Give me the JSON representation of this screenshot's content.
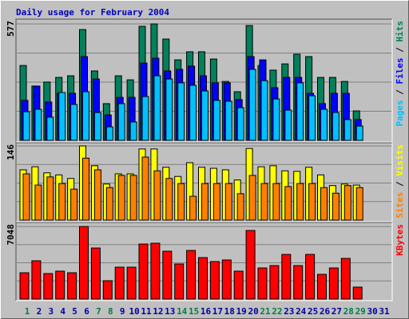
{
  "title": "Daily usage for February 2004",
  "legend_separator": " / ",
  "categories": [
    "1",
    "2",
    "3",
    "4",
    "5",
    "6",
    "7",
    "8",
    "9",
    "10",
    "11",
    "12",
    "13",
    "14",
    "15",
    "16",
    "17",
    "18",
    "19",
    "20",
    "21",
    "22",
    "23",
    "24",
    "25",
    "26",
    "27",
    "28",
    "29",
    "30",
    "31"
  ],
  "label_colors": [
    "#008040",
    "#0000a0",
    "#0000a0",
    "#0000a0",
    "#0000a0",
    "#0000a0",
    "#008040",
    "#008040",
    "#0000a0",
    "#0000a0",
    "#0000a0",
    "#0000a0",
    "#0000a0",
    "#008040",
    "#008040",
    "#0000a0",
    "#0000a0",
    "#0000a0",
    "#0000a0",
    "#0000a0",
    "#008040",
    "#008040",
    "#0000a0",
    "#0000a0",
    "#0000a0",
    "#0000a0",
    "#0000a0",
    "#008040",
    "#008040",
    "#0000a0",
    "#0000a0"
  ],
  "chart_data": [
    {
      "type": "bar",
      "ylim": [
        0,
        577
      ],
      "yticks": [
        577
      ],
      "grid": true,
      "series": [
        {
          "name": "Hits",
          "color": "#00805c",
          "values": [
            371,
            269,
            289,
            312,
            320,
            549,
            344,
            182,
            320,
            300,
            565,
            577,
            502,
            399,
            439,
            439,
            403,
            292,
            241,
            569,
            371,
            348,
            379,
            427,
            415,
            312,
            312,
            292,
            146,
            null,
            null
          ]
        },
        {
          "name": "Files",
          "color": "#0000ff",
          "values": [
            198,
            269,
            190,
            233,
            233,
            415,
            304,
            126,
            213,
            213,
            383,
            407,
            344,
            352,
            368,
            320,
            285,
            285,
            202,
            415,
            399,
            261,
            312,
            312,
            233,
            182,
            233,
            233,
            103,
            null,
            null
          ]
        },
        {
          "name": "Pages",
          "color": "#00c0ff",
          "values": [
            142,
            154,
            115,
            237,
            178,
            241,
            138,
            67,
            182,
            91,
            217,
            320,
            304,
            285,
            273,
            245,
            198,
            194,
            162,
            352,
            296,
            205,
            150,
            285,
            221,
            154,
            138,
            103,
            71,
            null,
            null
          ]
        }
      ]
    },
    {
      "type": "bar",
      "ylim": [
        0,
        146
      ],
      "yticks": [
        146
      ],
      "grid": true,
      "series": [
        {
          "name": "Visits",
          "color": "#ffff00",
          "values": [
            99,
            105,
            93,
            89,
            82,
            146,
            107,
            71,
            91,
            91,
            140,
            140,
            104,
            86,
            113,
            104,
            102,
            99,
            79,
            141,
            105,
            107,
            97,
            96,
            104,
            89,
            68,
            71,
            69,
            null,
            null
          ]
        },
        {
          "name": "Sites",
          "color": "#ff8000",
          "values": [
            91,
            69,
            85,
            72,
            61,
            122,
            99,
            64,
            88,
            88,
            124,
            97,
            82,
            72,
            47,
            72,
            72,
            72,
            52,
            88,
            72,
            72,
            66,
            72,
            72,
            64,
            53,
            68,
            64,
            null,
            null
          ]
        }
      ]
    },
    {
      "type": "bar",
      "ylim": [
        0,
        7048
      ],
      "yticks": [
        7048
      ],
      "grid": true,
      "series": [
        {
          "name": "KBytes",
          "color": "#ff0000",
          "values": [
            2556,
            3718,
            2478,
            2711,
            2556,
            7048,
            4957,
            1781,
            3098,
            3098,
            5344,
            5422,
            4647,
            3408,
            4724,
            4027,
            3640,
            3795,
            2711,
            6661,
            3021,
            3253,
            4337,
            3253,
            4337,
            2401,
            3021,
            3950,
            1162,
            null,
            null
          ]
        }
      ]
    }
  ]
}
